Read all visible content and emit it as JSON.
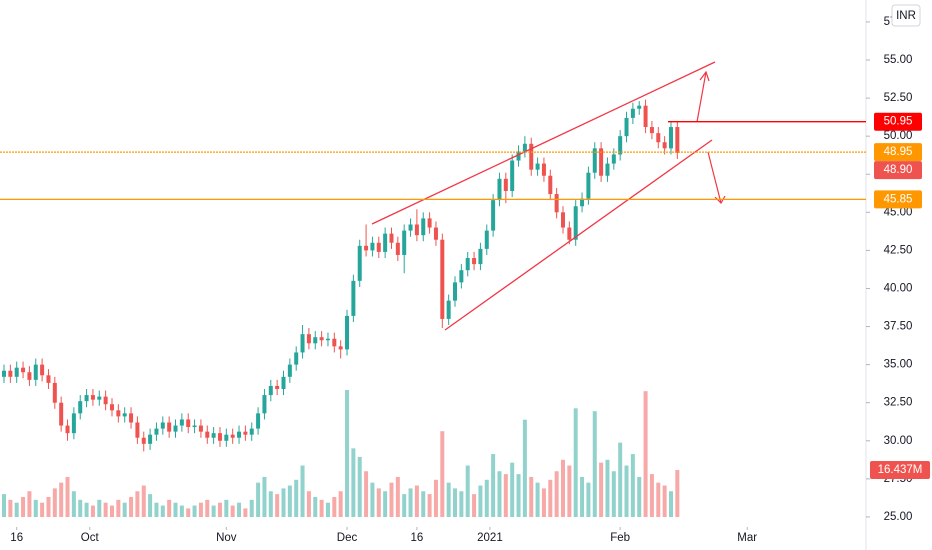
{
  "chart_data": {
    "type": "candlestick",
    "currency": "INR",
    "xlim": [
      -0.63,
      135.7
    ],
    "ylim": [
      24.47,
      58.94
    ],
    "xticks": [
      {
        "value": 2,
        "label": "16"
      },
      {
        "value": 13.5,
        "label": "Oct"
      },
      {
        "value": 35,
        "label": "Nov"
      },
      {
        "value": 54,
        "label": "Dec"
      },
      {
        "value": 65,
        "label": "16"
      },
      {
        "value": 76.5,
        "label": "2021"
      },
      {
        "value": 97,
        "label": "Feb"
      },
      {
        "value": 117,
        "label": "Mar"
      }
    ],
    "yticks": [
      {
        "value": 25,
        "label": "25.00"
      },
      {
        "value": 27.5,
        "label": "27.50"
      },
      {
        "value": 30,
        "label": "30.00"
      },
      {
        "value": 32.5,
        "label": "32.50"
      },
      {
        "value": 35,
        "label": "35.00"
      },
      {
        "value": 37.5,
        "label": "37.50"
      },
      {
        "value": 40,
        "label": "40.00"
      },
      {
        "value": 42.5,
        "label": "42.50"
      },
      {
        "value": 45,
        "label": "45.00"
      },
      {
        "value": 47.5,
        "label": "47.50"
      },
      {
        "value": 50,
        "label": "50.00"
      },
      {
        "value": 52.5,
        "label": "52.50"
      },
      {
        "value": 55,
        "label": "55.00"
      },
      {
        "value": 57.5,
        "label": "57.50"
      }
    ],
    "up_color": "#26a69a",
    "down_color": "#ef5350",
    "open": [
      34.2,
      34.6,
      34.2,
      34.8,
      34.5,
      34.0,
      35.0,
      34.3,
      33.8,
      32.5,
      31.0,
      30.5,
      31.8,
      32.6,
      33.0,
      32.7,
      32.9,
      32.4,
      32.0,
      31.6,
      31.8,
      31.2,
      30.2,
      29.8,
      30.4,
      30.8,
      31.2,
      30.6,
      31.0,
      31.4,
      30.9,
      31.0,
      30.6,
      30.2,
      30.5,
      30.0,
      30.4,
      30.2,
      30.6,
      30.4,
      30.8,
      31.8,
      33.0,
      33.6,
      33.4,
      34.2,
      35.0,
      35.8,
      37.0,
      36.4,
      36.8,
      36.6,
      36.7,
      36.2,
      36.0,
      38.2,
      40.5,
      42.8,
      42.5,
      43.0,
      42.4,
      43.6,
      43.0,
      42.2,
      43.8,
      44.2,
      43.5,
      44.6,
      44.0,
      43.2,
      38.0,
      39.2,
      40.4,
      41.2,
      42.0,
      41.6,
      42.6,
      43.8,
      45.8,
      47.2,
      46.4,
      48.4,
      49.0,
      49.5,
      47.8,
      48.2,
      47.4,
      46.2,
      45.0,
      44.0,
      43.2,
      45.4,
      45.9,
      47.6,
      49.2,
      47.4,
      48.2,
      48.8,
      50.0,
      51.2,
      51.8,
      52.0,
      50.6,
      50.2,
      49.6,
      49.2,
      50.6
    ],
    "high": [
      35.0,
      35.0,
      35.2,
      35.2,
      34.9,
      35.4,
      35.4,
      34.7,
      34.2,
      32.9,
      31.4,
      32.2,
      33.0,
      33.4,
      33.4,
      33.3,
      33.3,
      32.8,
      32.4,
      32.2,
      32.2,
      31.6,
      30.6,
      30.8,
      31.2,
      31.6,
      31.6,
      31.4,
      31.8,
      31.8,
      31.4,
      31.4,
      31.0,
      30.9,
      30.9,
      30.8,
      30.8,
      31.0,
      31.0,
      31.2,
      32.2,
      33.4,
      34.0,
      34.0,
      34.6,
      35.4,
      36.2,
      37.6,
      37.4,
      37.2,
      37.2,
      37.1,
      37.1,
      36.6,
      38.6,
      40.9,
      43.2,
      44.2,
      43.4,
      43.4,
      44.0,
      44.0,
      43.4,
      44.2,
      44.6,
      45.2,
      45.0,
      45.0,
      44.4,
      43.6,
      39.6,
      40.8,
      41.6,
      42.4,
      42.4,
      43.0,
      44.2,
      46.2,
      47.6,
      47.6,
      48.8,
      49.4,
      50.0,
      49.9,
      48.6,
      48.6,
      47.8,
      46.6,
      45.4,
      44.4,
      45.8,
      46.3,
      48.0,
      49.6,
      49.6,
      48.6,
      49.2,
      50.4,
      51.6,
      52.2,
      52.3,
      52.4,
      51.0,
      50.6,
      50.0,
      51.0,
      51.0
    ],
    "low": [
      33.8,
      33.8,
      33.8,
      34.1,
      33.6,
      33.6,
      33.9,
      33.4,
      32.1,
      30.6,
      30.0,
      30.1,
      31.4,
      32.2,
      32.3,
      32.3,
      32.0,
      31.6,
      31.2,
      31.2,
      30.8,
      29.8,
      29.3,
      29.4,
      30.0,
      30.4,
      30.2,
      30.2,
      30.6,
      30.5,
      30.5,
      30.2,
      29.8,
      29.8,
      29.6,
      29.6,
      29.8,
      29.8,
      30.0,
      30.0,
      30.4,
      31.4,
      32.6,
      33.0,
      33.0,
      33.8,
      34.6,
      35.4,
      36.0,
      36.0,
      36.2,
      36.2,
      35.8,
      35.4,
      35.6,
      37.8,
      40.1,
      42.1,
      42.1,
      42.0,
      42.0,
      42.6,
      41.8,
      41.0,
      43.4,
      43.1,
      43.1,
      43.6,
      42.8,
      37.4,
      37.6,
      38.8,
      40.0,
      40.8,
      41.2,
      41.2,
      42.2,
      43.4,
      45.4,
      45.6,
      46.0,
      48.0,
      48.6,
      47.4,
      47.4,
      47.0,
      45.8,
      44.6,
      43.6,
      42.9,
      42.8,
      45.0,
      45.5,
      47.2,
      47.0,
      47.0,
      47.8,
      48.4,
      49.6,
      50.8,
      51.4,
      50.2,
      49.8,
      49.2,
      48.8,
      48.8,
      48.5
    ],
    "close": [
      34.6,
      34.2,
      34.8,
      34.5,
      34.0,
      35.0,
      34.3,
      33.8,
      32.5,
      31.0,
      30.5,
      31.8,
      32.6,
      33.0,
      32.7,
      32.9,
      32.4,
      32.0,
      31.6,
      31.8,
      31.2,
      30.2,
      29.8,
      30.4,
      30.8,
      31.2,
      30.6,
      31.0,
      31.4,
      30.9,
      31.0,
      30.6,
      30.2,
      30.5,
      30.0,
      30.4,
      30.2,
      30.6,
      30.4,
      30.8,
      31.8,
      33.0,
      33.6,
      33.4,
      34.2,
      35.0,
      35.8,
      37.0,
      36.4,
      36.8,
      36.6,
      36.7,
      36.2,
      36.0,
      38.2,
      40.5,
      42.8,
      42.5,
      43.0,
      42.4,
      43.6,
      43.0,
      42.2,
      43.8,
      44.2,
      43.5,
      44.6,
      44.0,
      43.2,
      38.0,
      39.2,
      40.4,
      41.2,
      42.0,
      41.6,
      42.6,
      43.8,
      45.8,
      47.2,
      46.4,
      48.4,
      49.0,
      49.5,
      47.8,
      48.2,
      47.4,
      46.2,
      45.0,
      44.0,
      43.2,
      45.4,
      45.9,
      47.6,
      49.2,
      47.4,
      48.2,
      48.8,
      50.0,
      51.2,
      51.8,
      52.0,
      50.6,
      50.2,
      49.6,
      49.2,
      50.6,
      48.9
    ],
    "volume": {
      "values": [
        8,
        6,
        5,
        7,
        9,
        6,
        5,
        7,
        10,
        12,
        14,
        9,
        6,
        5,
        4,
        6,
        5,
        4,
        6,
        5,
        7,
        9,
        11,
        8,
        5,
        4,
        6,
        5,
        4,
        3,
        4,
        5,
        6,
        4,
        5,
        6,
        4,
        5,
        3,
        6,
        12,
        14,
        9,
        8,
        10,
        11,
        13,
        18,
        9,
        7,
        6,
        5,
        7,
        9,
        44.4,
        24,
        21,
        16,
        12,
        10,
        9,
        12,
        14,
        8,
        10,
        11,
        9,
        8,
        13,
        30,
        12,
        10,
        9,
        18,
        8,
        11,
        13,
        22,
        16,
        15,
        19,
        15,
        34,
        14,
        12,
        10,
        13,
        16,
        20,
        18,
        38,
        14,
        12,
        37,
        19,
        20,
        16,
        26,
        18,
        22,
        14,
        44,
        15,
        12,
        11,
        9,
        16.437
      ],
      "last_value_label": "16.437M"
    },
    "levels": [
      {
        "value": 50.95,
        "label": "50.95",
        "color": "#ff0000"
      },
      {
        "value": 48.95,
        "label": "48.95",
        "color": "#ff9800"
      },
      {
        "value": 48.9,
        "label": "48.90",
        "color": "#ef5350"
      },
      {
        "value": 45.85,
        "label": "45.85",
        "color": "#ff9800"
      }
    ]
  }
}
